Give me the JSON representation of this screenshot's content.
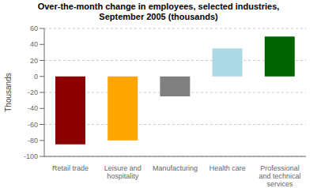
{
  "chart_data": {
    "type": "bar",
    "title": "Over-the-month change in employees, selected industries,\nSeptember 2005 (thousands)",
    "categories": [
      "Retail trade",
      "Leisure and\nhospitality",
      "Manufacturing",
      "Health care",
      "Professional\nand technical\nservices"
    ],
    "values": [
      -85,
      -80,
      -25,
      35,
      50
    ],
    "colors": [
      "#8B0000",
      "#FFA500",
      "#808080",
      "#ADD8E6",
      "#006400"
    ],
    "ylabel": "Thousands",
    "ylim": [
      -100,
      60
    ],
    "yticks": [
      -100,
      -80,
      -60,
      -40,
      -20,
      0,
      20,
      40,
      60
    ],
    "grid": true
  }
}
